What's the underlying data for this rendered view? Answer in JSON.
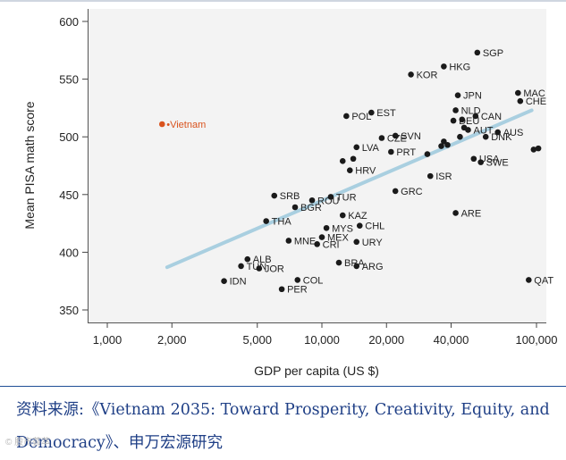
{
  "chart_data": {
    "type": "scatter",
    "xscale": "log",
    "xlabel": "GDP per capita (US $)",
    "ylabel": "Mean PISA math score",
    "xlim": [
      1000,
      100000
    ],
    "ylim": [
      350,
      600
    ],
    "xticks": [
      {
        "value": 1000,
        "label": "1,000"
      },
      {
        "value": 2000,
        "label": "2,000"
      },
      {
        "value": 5000,
        "label": "5,000"
      },
      {
        "value": 10000,
        "label": "10,000"
      },
      {
        "value": 20000,
        "label": "20,000"
      },
      {
        "value": 40000,
        "label": "40,000"
      },
      {
        "value": 100000,
        "label": "100,000"
      }
    ],
    "yticks": [
      350,
      400,
      450,
      500,
      550,
      600
    ],
    "trendline": {
      "x": [
        1900,
        95000
      ],
      "y": [
        387,
        523
      ],
      "color": "#a9cfe0"
    },
    "highlight": {
      "label": "Vietnam",
      "x": 1800,
      "y": 511,
      "color": "#d9531e"
    },
    "points": [
      {
        "label": "SGP",
        "x": 53000,
        "y": 573
      },
      {
        "label": "HKG",
        "x": 37000,
        "y": 561
      },
      {
        "label": "KOR",
        "x": 26000,
        "y": 554
      },
      {
        "label": "JPN",
        "x": 43000,
        "y": 536
      },
      {
        "label": "MAC",
        "x": 82000,
        "y": 538
      },
      {
        "label": "CHE",
        "x": 84000,
        "y": 531
      },
      {
        "label": "POL",
        "x": 13000,
        "y": 518
      },
      {
        "label": "EST",
        "x": 17000,
        "y": 521
      },
      {
        "label": "NLD",
        "x": 42000,
        "y": 523
      },
      {
        "label": "DEU",
        "x": 41000,
        "y": 514
      },
      {
        "label": "CAN",
        "x": 52000,
        "y": 518
      },
      {
        "label": "AUT",
        "x": 48000,
        "y": 506
      },
      {
        "label": "AUS",
        "x": 66000,
        "y": 504
      },
      {
        "label": "DNK",
        "x": 58000,
        "y": 500
      },
      {
        "label": "SVN",
        "x": 22000,
        "y": 501
      },
      {
        "label": "CZE",
        "x": 19000,
        "y": 499
      },
      {
        "label": "LVA",
        "x": 14500,
        "y": 491
      },
      {
        "label": "PRT",
        "x": 21000,
        "y": 487
      },
      {
        "label": "USA",
        "x": 51000,
        "y": 481
      },
      {
        "label": "SWE",
        "x": 55000,
        "y": 478
      },
      {
        "label": "HRV",
        "x": 13500,
        "y": 471
      },
      {
        "label": "ISR",
        "x": 32000,
        "y": 466
      },
      {
        "label": "GRC",
        "x": 22000,
        "y": 453
      },
      {
        "label": "SRB",
        "x": 6000,
        "y": 449
      },
      {
        "label": "ROU",
        "x": 9000,
        "y": 445
      },
      {
        "label": "TUR",
        "x": 11000,
        "y": 448
      },
      {
        "label": "BGR",
        "x": 7500,
        "y": 439
      },
      {
        "label": "KAZ",
        "x": 12500,
        "y": 432
      },
      {
        "label": "ARE",
        "x": 42000,
        "y": 434
      },
      {
        "label": "THA",
        "x": 5500,
        "y": 427
      },
      {
        "label": "MYS",
        "x": 10500,
        "y": 421
      },
      {
        "label": "CHL",
        "x": 15000,
        "y": 423
      },
      {
        "label": "MNE",
        "x": 7000,
        "y": 410
      },
      {
        "label": "MEX",
        "x": 10000,
        "y": 413
      },
      {
        "label": "URY",
        "x": 14500,
        "y": 409
      },
      {
        "label": "CRI",
        "x": 9500,
        "y": 407
      },
      {
        "label": "ALB",
        "x": 4500,
        "y": 394
      },
      {
        "label": "TUN",
        "x": 4200,
        "y": 388
      },
      {
        "label": "JOR",
        "x": 5100,
        "y": 386
      },
      {
        "label": "ARG",
        "x": 14500,
        "y": 388
      },
      {
        "label": "BRA",
        "x": 12000,
        "y": 391
      },
      {
        "label": "COL",
        "x": 7700,
        "y": 376
      },
      {
        "label": "IDN",
        "x": 3500,
        "y": 375
      },
      {
        "label": "PER",
        "x": 6500,
        "y": 368
      },
      {
        "label": "QAT",
        "x": 92000,
        "y": 376
      },
      {
        "label": "",
        "x": 31000,
        "y": 485
      },
      {
        "label": "",
        "x": 36000,
        "y": 492
      },
      {
        "label": "",
        "x": 37000,
        "y": 496
      },
      {
        "label": "",
        "x": 38500,
        "y": 493
      },
      {
        "label": "",
        "x": 44000,
        "y": 500
      },
      {
        "label": "",
        "x": 46000,
        "y": 508
      },
      {
        "label": "",
        "x": 45000,
        "y": 515
      },
      {
        "label": "",
        "x": 14000,
        "y": 481
      },
      {
        "label": "",
        "x": 12500,
        "y": 479
      },
      {
        "label": "",
        "x": 97000,
        "y": 489
      },
      {
        "label": "",
        "x": 102000,
        "y": 490
      }
    ]
  },
  "caption": {
    "source_text": "资料来源:《Vietnam 2035: Toward Prosperity, Creativity, Equity, and Democracy》、申万宏源研究",
    "watermark": "© 股市荟萃"
  },
  "colors": {
    "dot": "#1a1a1a",
    "trend": "#a9cfe0",
    "highlight": "#d9531e",
    "plot_bg": "#f3f3f3",
    "source": "#1f3f86"
  }
}
